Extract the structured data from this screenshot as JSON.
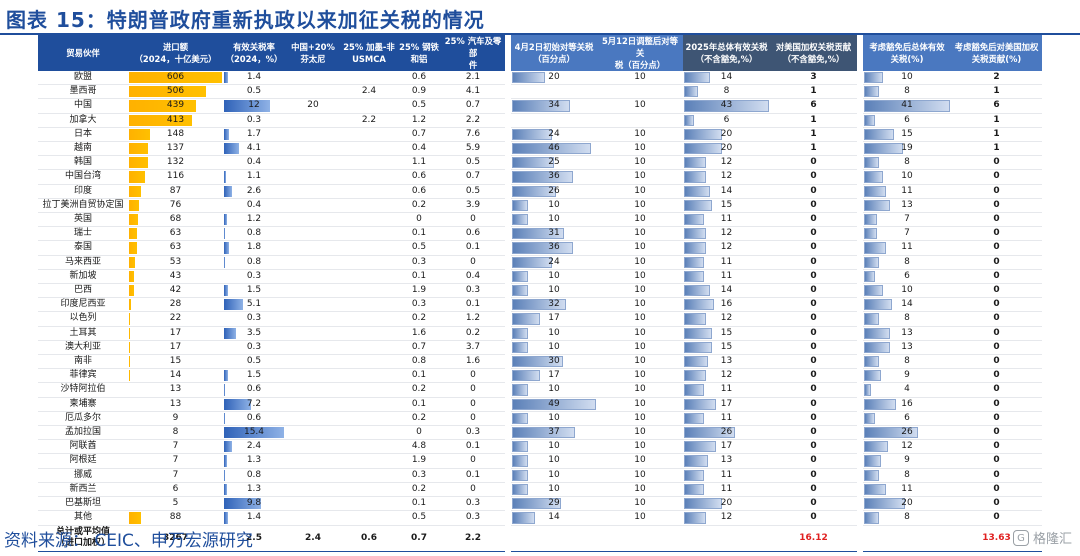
{
  "title": "图表 15：特朗普政府重新执政以来加征关税的情况",
  "source": "资料来源：   CEIC、申万宏源研究",
  "watermark": {
    "logo": "G",
    "text": "格隆汇"
  },
  "headers": {
    "partner": "贸易伙伴",
    "import": "进口额\n（2024，十亿美元）",
    "eff_rate": "有效关税率\n（2024，%）",
    "china_fentanyl": "中国+20%\n芬太尼",
    "usmca": "25% 加墨-非\nUSMCA",
    "steel": "25% 钢铁\n和铝",
    "auto": "25% 汽车及零部\n件",
    "apr2": "4月2日初始对等关税\n（百分点）",
    "may12": "5月12日调整后对等关\n税（百分点）",
    "total2025": "2025年总体有效关税\n（不含豁免,%）",
    "contrib": "对美国加权关税贡献\n（不含豁免,%）",
    "exempt_total": "考虑豁免后总体有效\n关税(%)",
    "exempt_contrib": "考虑豁免后对美国加权\n关税贡献(%)"
  },
  "bar_scale": {
    "import_max": 606,
    "eff_rate_max": 15.4,
    "apr2_max": 49,
    "may12_max": 49,
    "total2025_max": 43,
    "exempt_total_max": 41
  },
  "rows": [
    {
      "partner": "欧盟",
      "import": "606",
      "eff": "1.4",
      "cn": "",
      "usmca": "",
      "steel": "0.6",
      "auto": "2.1",
      "apr2": "20",
      "may12": "10",
      "total": "14",
      "contrib": "3",
      "ex_total": "10",
      "ex_contrib": "2"
    },
    {
      "partner": "墨西哥",
      "import": "506",
      "eff": "0.5",
      "cn": "",
      "usmca": "2.4",
      "steel": "0.9",
      "auto": "4.1",
      "apr2": "",
      "may12": "",
      "total": "8",
      "contrib": "1",
      "ex_total": "8",
      "ex_contrib": "1"
    },
    {
      "partner": "中国",
      "import": "439",
      "eff": "12",
      "cn": "20",
      "usmca": "",
      "steel": "0.5",
      "auto": "0.7",
      "apr2": "34",
      "may12": "10",
      "total": "43",
      "contrib": "6",
      "ex_total": "41",
      "ex_contrib": "6"
    },
    {
      "partner": "加拿大",
      "import": "413",
      "eff": "0.3",
      "cn": "",
      "usmca": "2.2",
      "steel": "1.2",
      "auto": "2.2",
      "apr2": "",
      "may12": "",
      "total": "6",
      "contrib": "1",
      "ex_total": "6",
      "ex_contrib": "1"
    },
    {
      "partner": "日本",
      "import": "148",
      "eff": "1.7",
      "cn": "",
      "usmca": "",
      "steel": "0.7",
      "auto": "7.6",
      "apr2": "24",
      "may12": "10",
      "total": "20",
      "contrib": "1",
      "ex_total": "15",
      "ex_contrib": "1"
    },
    {
      "partner": "越南",
      "import": "137",
      "eff": "4.1",
      "cn": "",
      "usmca": "",
      "steel": "0.4",
      "auto": "5.9",
      "apr2": "46",
      "may12": "10",
      "total": "20",
      "contrib": "1",
      "ex_total": "19",
      "ex_contrib": "1"
    },
    {
      "partner": "韩国",
      "import": "132",
      "eff": "0.4",
      "cn": "",
      "usmca": "",
      "steel": "1.1",
      "auto": "0.5",
      "apr2": "25",
      "may12": "10",
      "total": "12",
      "contrib": "0",
      "ex_total": "8",
      "ex_contrib": "0"
    },
    {
      "partner": "中国台湾",
      "import": "116",
      "eff": "1.1",
      "cn": "",
      "usmca": "",
      "steel": "0.6",
      "auto": "0.7",
      "apr2": "36",
      "may12": "10",
      "total": "12",
      "contrib": "0",
      "ex_total": "10",
      "ex_contrib": "0"
    },
    {
      "partner": "印度",
      "import": "87",
      "eff": "2.6",
      "cn": "",
      "usmca": "",
      "steel": "0.6",
      "auto": "0.5",
      "apr2": "26",
      "may12": "10",
      "total": "14",
      "contrib": "0",
      "ex_total": "11",
      "ex_contrib": "0"
    },
    {
      "partner": "拉丁美洲自贸协定国",
      "import": "76",
      "eff": "0.4",
      "cn": "",
      "usmca": "",
      "steel": "0.2",
      "auto": "3.9",
      "apr2": "10",
      "may12": "10",
      "total": "15",
      "contrib": "0",
      "ex_total": "13",
      "ex_contrib": "0"
    },
    {
      "partner": "英国",
      "import": "68",
      "eff": "1.2",
      "cn": "",
      "usmca": "",
      "steel": "0",
      "auto": "0",
      "apr2": "10",
      "may12": "10",
      "total": "11",
      "contrib": "0",
      "ex_total": "7",
      "ex_contrib": "0"
    },
    {
      "partner": "瑞士",
      "import": "63",
      "eff": "0.8",
      "cn": "",
      "usmca": "",
      "steel": "0.1",
      "auto": "0.6",
      "apr2": "31",
      "may12": "10",
      "total": "12",
      "contrib": "0",
      "ex_total": "7",
      "ex_contrib": "0"
    },
    {
      "partner": "泰国",
      "import": "63",
      "eff": "1.8",
      "cn": "",
      "usmca": "",
      "steel": "0.5",
      "auto": "0.1",
      "apr2": "36",
      "may12": "10",
      "total": "12",
      "contrib": "0",
      "ex_total": "11",
      "ex_contrib": "0"
    },
    {
      "partner": "马来西亚",
      "import": "53",
      "eff": "0.8",
      "cn": "",
      "usmca": "",
      "steel": "0.3",
      "auto": "0",
      "apr2": "24",
      "may12": "10",
      "total": "11",
      "contrib": "0",
      "ex_total": "8",
      "ex_contrib": "0"
    },
    {
      "partner": "新加坡",
      "import": "43",
      "eff": "0.3",
      "cn": "",
      "usmca": "",
      "steel": "0.1",
      "auto": "0.4",
      "apr2": "10",
      "may12": "10",
      "total": "11",
      "contrib": "0",
      "ex_total": "6",
      "ex_contrib": "0"
    },
    {
      "partner": "巴西",
      "import": "42",
      "eff": "1.5",
      "cn": "",
      "usmca": "",
      "steel": "1.9",
      "auto": "0.3",
      "apr2": "10",
      "may12": "10",
      "total": "14",
      "contrib": "0",
      "ex_total": "10",
      "ex_contrib": "0"
    },
    {
      "partner": "印度尼西亚",
      "import": "28",
      "eff": "5.1",
      "cn": "",
      "usmca": "",
      "steel": "0.3",
      "auto": "0.1",
      "apr2": "32",
      "may12": "10",
      "total": "16",
      "contrib": "0",
      "ex_total": "14",
      "ex_contrib": "0"
    },
    {
      "partner": "以色列",
      "import": "22",
      "eff": "0.3",
      "cn": "",
      "usmca": "",
      "steel": "0.2",
      "auto": "1.2",
      "apr2": "17",
      "may12": "10",
      "total": "12",
      "contrib": "0",
      "ex_total": "8",
      "ex_contrib": "0"
    },
    {
      "partner": "土耳其",
      "import": "17",
      "eff": "3.5",
      "cn": "",
      "usmca": "",
      "steel": "1.6",
      "auto": "0.2",
      "apr2": "10",
      "may12": "10",
      "total": "15",
      "contrib": "0",
      "ex_total": "13",
      "ex_contrib": "0"
    },
    {
      "partner": "澳大利亚",
      "import": "17",
      "eff": "0.3",
      "cn": "",
      "usmca": "",
      "steel": "0.7",
      "auto": "3.7",
      "apr2": "10",
      "may12": "10",
      "total": "15",
      "contrib": "0",
      "ex_total": "13",
      "ex_contrib": "0"
    },
    {
      "partner": "南非",
      "import": "15",
      "eff": "0.5",
      "cn": "",
      "usmca": "",
      "steel": "0.8",
      "auto": "1.6",
      "apr2": "30",
      "may12": "10",
      "total": "13",
      "contrib": "0",
      "ex_total": "8",
      "ex_contrib": "0"
    },
    {
      "partner": "菲律宾",
      "import": "14",
      "eff": "1.5",
      "cn": "",
      "usmca": "",
      "steel": "0.1",
      "auto": "0",
      "apr2": "17",
      "may12": "10",
      "total": "12",
      "contrib": "0",
      "ex_total": "9",
      "ex_contrib": "0"
    },
    {
      "partner": "沙特阿拉伯",
      "import": "13",
      "eff": "0.6",
      "cn": "",
      "usmca": "",
      "steel": "0.2",
      "auto": "0",
      "apr2": "10",
      "may12": "10",
      "total": "11",
      "contrib": "0",
      "ex_total": "4",
      "ex_contrib": "0"
    },
    {
      "partner": "柬埔寨",
      "import": "13",
      "eff": "7.2",
      "cn": "",
      "usmca": "",
      "steel": "0.1",
      "auto": "0",
      "apr2": "49",
      "may12": "10",
      "total": "17",
      "contrib": "0",
      "ex_total": "16",
      "ex_contrib": "0"
    },
    {
      "partner": "厄瓜多尔",
      "import": "9",
      "eff": "0.6",
      "cn": "",
      "usmca": "",
      "steel": "0.2",
      "auto": "0",
      "apr2": "10",
      "may12": "10",
      "total": "11",
      "contrib": "0",
      "ex_total": "6",
      "ex_contrib": "0"
    },
    {
      "partner": "孟加拉国",
      "import": "8",
      "eff": "15.4",
      "cn": "",
      "usmca": "",
      "steel": "0",
      "auto": "0.3",
      "apr2": "37",
      "may12": "10",
      "total": "26",
      "contrib": "0",
      "ex_total": "26",
      "ex_contrib": "0"
    },
    {
      "partner": "阿联酋",
      "import": "7",
      "eff": "2.4",
      "cn": "",
      "usmca": "",
      "steel": "4.8",
      "auto": "0.1",
      "apr2": "10",
      "may12": "10",
      "total": "17",
      "contrib": "0",
      "ex_total": "12",
      "ex_contrib": "0"
    },
    {
      "partner": "阿根廷",
      "import": "7",
      "eff": "1.3",
      "cn": "",
      "usmca": "",
      "steel": "1.9",
      "auto": "0",
      "apr2": "10",
      "may12": "10",
      "total": "13",
      "contrib": "0",
      "ex_total": "9",
      "ex_contrib": "0"
    },
    {
      "partner": "挪威",
      "import": "7",
      "eff": "0.8",
      "cn": "",
      "usmca": "",
      "steel": "0.3",
      "auto": "0.1",
      "apr2": "10",
      "may12": "10",
      "total": "11",
      "contrib": "0",
      "ex_total": "8",
      "ex_contrib": "0"
    },
    {
      "partner": "新西兰",
      "import": "6",
      "eff": "1.3",
      "cn": "",
      "usmca": "",
      "steel": "0.2",
      "auto": "0",
      "apr2": "10",
      "may12": "10",
      "total": "11",
      "contrib": "0",
      "ex_total": "11",
      "ex_contrib": "0"
    },
    {
      "partner": "巴基斯坦",
      "import": "5",
      "eff": "9.8",
      "cn": "",
      "usmca": "",
      "steel": "0.1",
      "auto": "0.3",
      "apr2": "29",
      "may12": "10",
      "total": "20",
      "contrib": "0",
      "ex_total": "20",
      "ex_contrib": "0"
    },
    {
      "partner": "其他",
      "import": "88",
      "eff": "1.4",
      "cn": "",
      "usmca": "",
      "steel": "0.5",
      "auto": "0.3",
      "apr2": "14",
      "may12": "10",
      "total": "12",
      "contrib": "0",
      "ex_total": "8",
      "ex_contrib": "0"
    }
  ],
  "footer": {
    "label": "总计或平均值\n（进口加权）",
    "import": "3267",
    "eff": "2.5",
    "cn": "2.4",
    "usmca": "0.6",
    "steel": "0.7",
    "auto": "2.2",
    "apr2": "",
    "may12": "",
    "total": "",
    "contrib": "16.12",
    "ex_total": "",
    "ex_contrib": "13.63"
  },
  "colors": {
    "header_dark": "#1f4e9c",
    "header_light": "#4a78c0",
    "header_slate": "#3e5574",
    "bar_orange": "#ffc000",
    "bar_blue": "#2f62b8",
    "total_red": "#e02020"
  }
}
